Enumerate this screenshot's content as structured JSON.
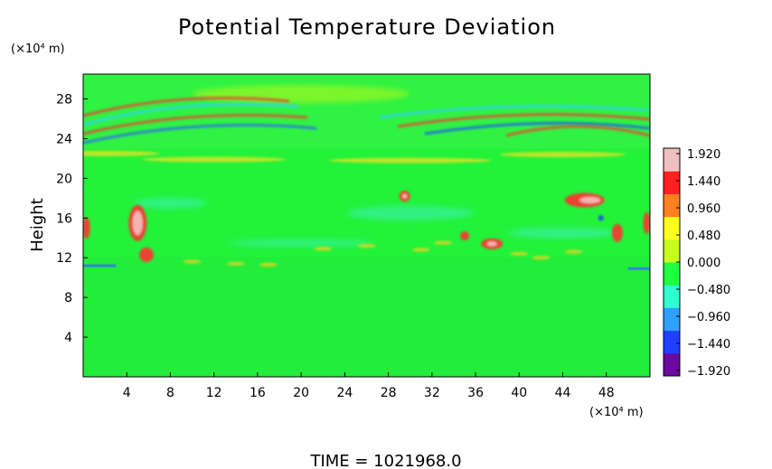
{
  "chart_data": {
    "type": "heatmap",
    "title": "Potential Temperature Deviation",
    "ylabel": "Height",
    "y_unit_label": "(×10⁴ m)",
    "x_unit_label": "(×10⁴ m)",
    "x_ticks": [
      "4",
      "8",
      "12",
      "16",
      "20",
      "24",
      "28",
      "32",
      "36",
      "40",
      "44",
      "48"
    ],
    "y_ticks": [
      "4",
      "8",
      "12",
      "16",
      "20",
      "24",
      "28"
    ],
    "xlim": [
      0,
      52
    ],
    "ylim": [
      0,
      30.5
    ],
    "colorbar_ticks": [
      "1.920",
      "1.440",
      "0.960",
      "0.480",
      "0.000",
      "−0.480",
      "−0.960",
      "−1.440",
      "−1.920"
    ],
    "colorbar_range": [
      -1.92,
      1.92
    ],
    "colormap": [
      "#6a0aa0",
      "#2040ff",
      "#30a0ff",
      "#30ffd0",
      "#20ff40",
      "#c8ff20",
      "#ffff20",
      "#ff8020",
      "#ff2020",
      "#f0c0c0"
    ],
    "field_features": [
      {
        "desc": "stratified band",
        "y": 21.5,
        "polarity": "mixed"
      },
      {
        "desc": "cold band",
        "y": 20.2,
        "polarity": "negative"
      },
      {
        "desc": "warm cell",
        "x": 5.0,
        "y": 15.0,
        "polarity": "positive"
      },
      {
        "desc": "warm cell",
        "x": 37.5,
        "y": 13.0,
        "polarity": "positive"
      },
      {
        "desc": "warm cell",
        "x": 47.0,
        "y": 17.0,
        "polarity": "positive"
      },
      {
        "desc": "cool layer",
        "y": 10.8,
        "polarity": "negative"
      }
    ],
    "footer": "TIME = 1021968.0"
  }
}
